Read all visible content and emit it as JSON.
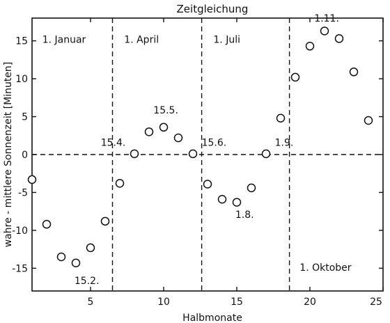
{
  "chart_data": {
    "type": "scatter",
    "title": "Zeitgleichung",
    "xlabel": "Halbmonate",
    "ylabel": "wahre - mittlere Sonnenzeit [Minuten]",
    "xlim": [
      1,
      25
    ],
    "ylim": [
      -18,
      18
    ],
    "xticks": [
      5,
      10,
      15,
      20,
      25
    ],
    "yticks": [
      -15,
      -10,
      -5,
      0,
      5,
      10,
      15
    ],
    "grid": false,
    "reference_line_y": 0,
    "vertical_lines_x": [
      6.5,
      12.6,
      18.6
    ],
    "points": [
      {
        "x": 1,
        "y": -3.3
      },
      {
        "x": 2,
        "y": -9.2
      },
      {
        "x": 3,
        "y": -13.5
      },
      {
        "x": 4,
        "y": -14.3
      },
      {
        "x": 5,
        "y": -12.3
      },
      {
        "x": 6,
        "y": -8.8
      },
      {
        "x": 7,
        "y": -3.8
      },
      {
        "x": 8,
        "y": 0.1
      },
      {
        "x": 9,
        "y": 3.0
      },
      {
        "x": 10,
        "y": 3.6
      },
      {
        "x": 11,
        "y": 2.2
      },
      {
        "x": 12,
        "y": 0.1
      },
      {
        "x": 13,
        "y": -3.9
      },
      {
        "x": 14,
        "y": -5.9
      },
      {
        "x": 15,
        "y": -6.3
      },
      {
        "x": 16,
        "y": -4.4
      },
      {
        "x": 17,
        "y": 0.1
      },
      {
        "x": 18,
        "y": 4.8
      },
      {
        "x": 19,
        "y": 10.2
      },
      {
        "x": 20,
        "y": 14.3
      },
      {
        "x": 21,
        "y": 16.3
      },
      {
        "x": 22,
        "y": 15.3
      },
      {
        "x": 23,
        "y": 10.9
      },
      {
        "x": 24,
        "y": 4.5
      }
    ],
    "region_labels": [
      {
        "text": "1. Januar",
        "x": 1.7,
        "y": 15.2
      },
      {
        "text": "1. April",
        "x": 7.3,
        "y": 15.2
      },
      {
        "text": "1. Juli",
        "x": 13.4,
        "y": 15.2
      },
      {
        "text": "1. Oktober",
        "x": 19.3,
        "y": -14.9
      }
    ],
    "annotations": [
      {
        "text": "15.2.",
        "x": 3.9,
        "y": -16.6
      },
      {
        "text": "15.4.",
        "x": 5.7,
        "y": 1.6
      },
      {
        "text": "15.5.",
        "x": 9.3,
        "y": 5.9
      },
      {
        "text": "15.6.",
        "x": 12.6,
        "y": 1.6
      },
      {
        "text": "1.8.",
        "x": 14.9,
        "y": -7.9
      },
      {
        "text": "1.9.",
        "x": 17.6,
        "y": 1.6
      },
      {
        "text": "1.11.",
        "x": 20.3,
        "y": 18.0
      }
    ]
  }
}
